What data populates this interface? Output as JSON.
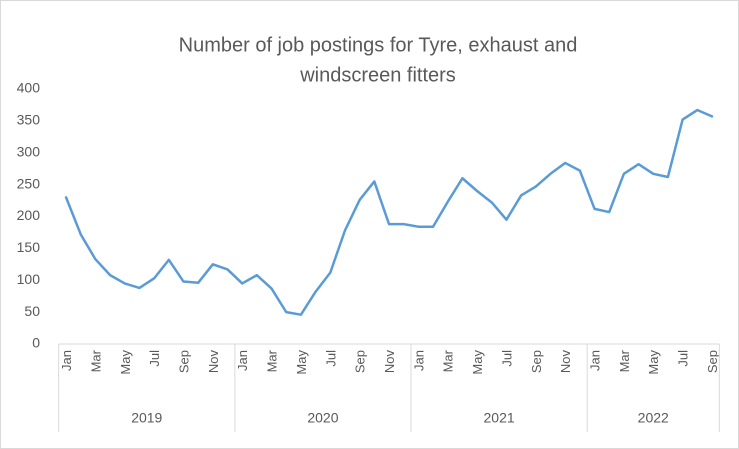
{
  "chart_data": {
    "type": "line",
    "title": [
      "Number of job postings for Tyre, exhaust and",
      "windscreen fitters"
    ],
    "categories": [
      "Jan",
      null,
      "Mar",
      null,
      "May",
      null,
      "Jul",
      null,
      "Sep",
      null,
      "Nov",
      null,
      "Jan",
      null,
      "Mar",
      null,
      "May",
      null,
      "Jul",
      null,
      "Sep",
      null,
      "Nov",
      null,
      "Jan",
      null,
      "Mar",
      null,
      "May",
      null,
      "Jul",
      null,
      "Sep",
      null,
      "Nov",
      null,
      "Jan",
      null,
      "Mar",
      null,
      "May",
      null,
      "Jul",
      null,
      "Sep"
    ],
    "years": [
      "2019",
      "2020",
      "2021",
      "2022"
    ],
    "values": [
      230,
      172,
      133,
      108,
      95,
      88,
      103,
      132,
      98,
      96,
      125,
      117,
      95,
      108,
      87,
      50,
      46,
      82,
      112,
      178,
      226,
      255,
      188,
      188,
      184,
      184,
      223,
      260,
      240,
      222,
      195,
      233,
      247,
      267,
      284,
      272,
      212,
      207,
      267,
      282,
      267,
      262,
      352,
      367,
      357
    ],
    "color": "#5b9bd5",
    "ylim": [
      0,
      400
    ],
    "yticks": [
      0,
      50,
      100,
      150,
      200,
      250,
      300,
      350,
      400
    ],
    "grid": false
  }
}
